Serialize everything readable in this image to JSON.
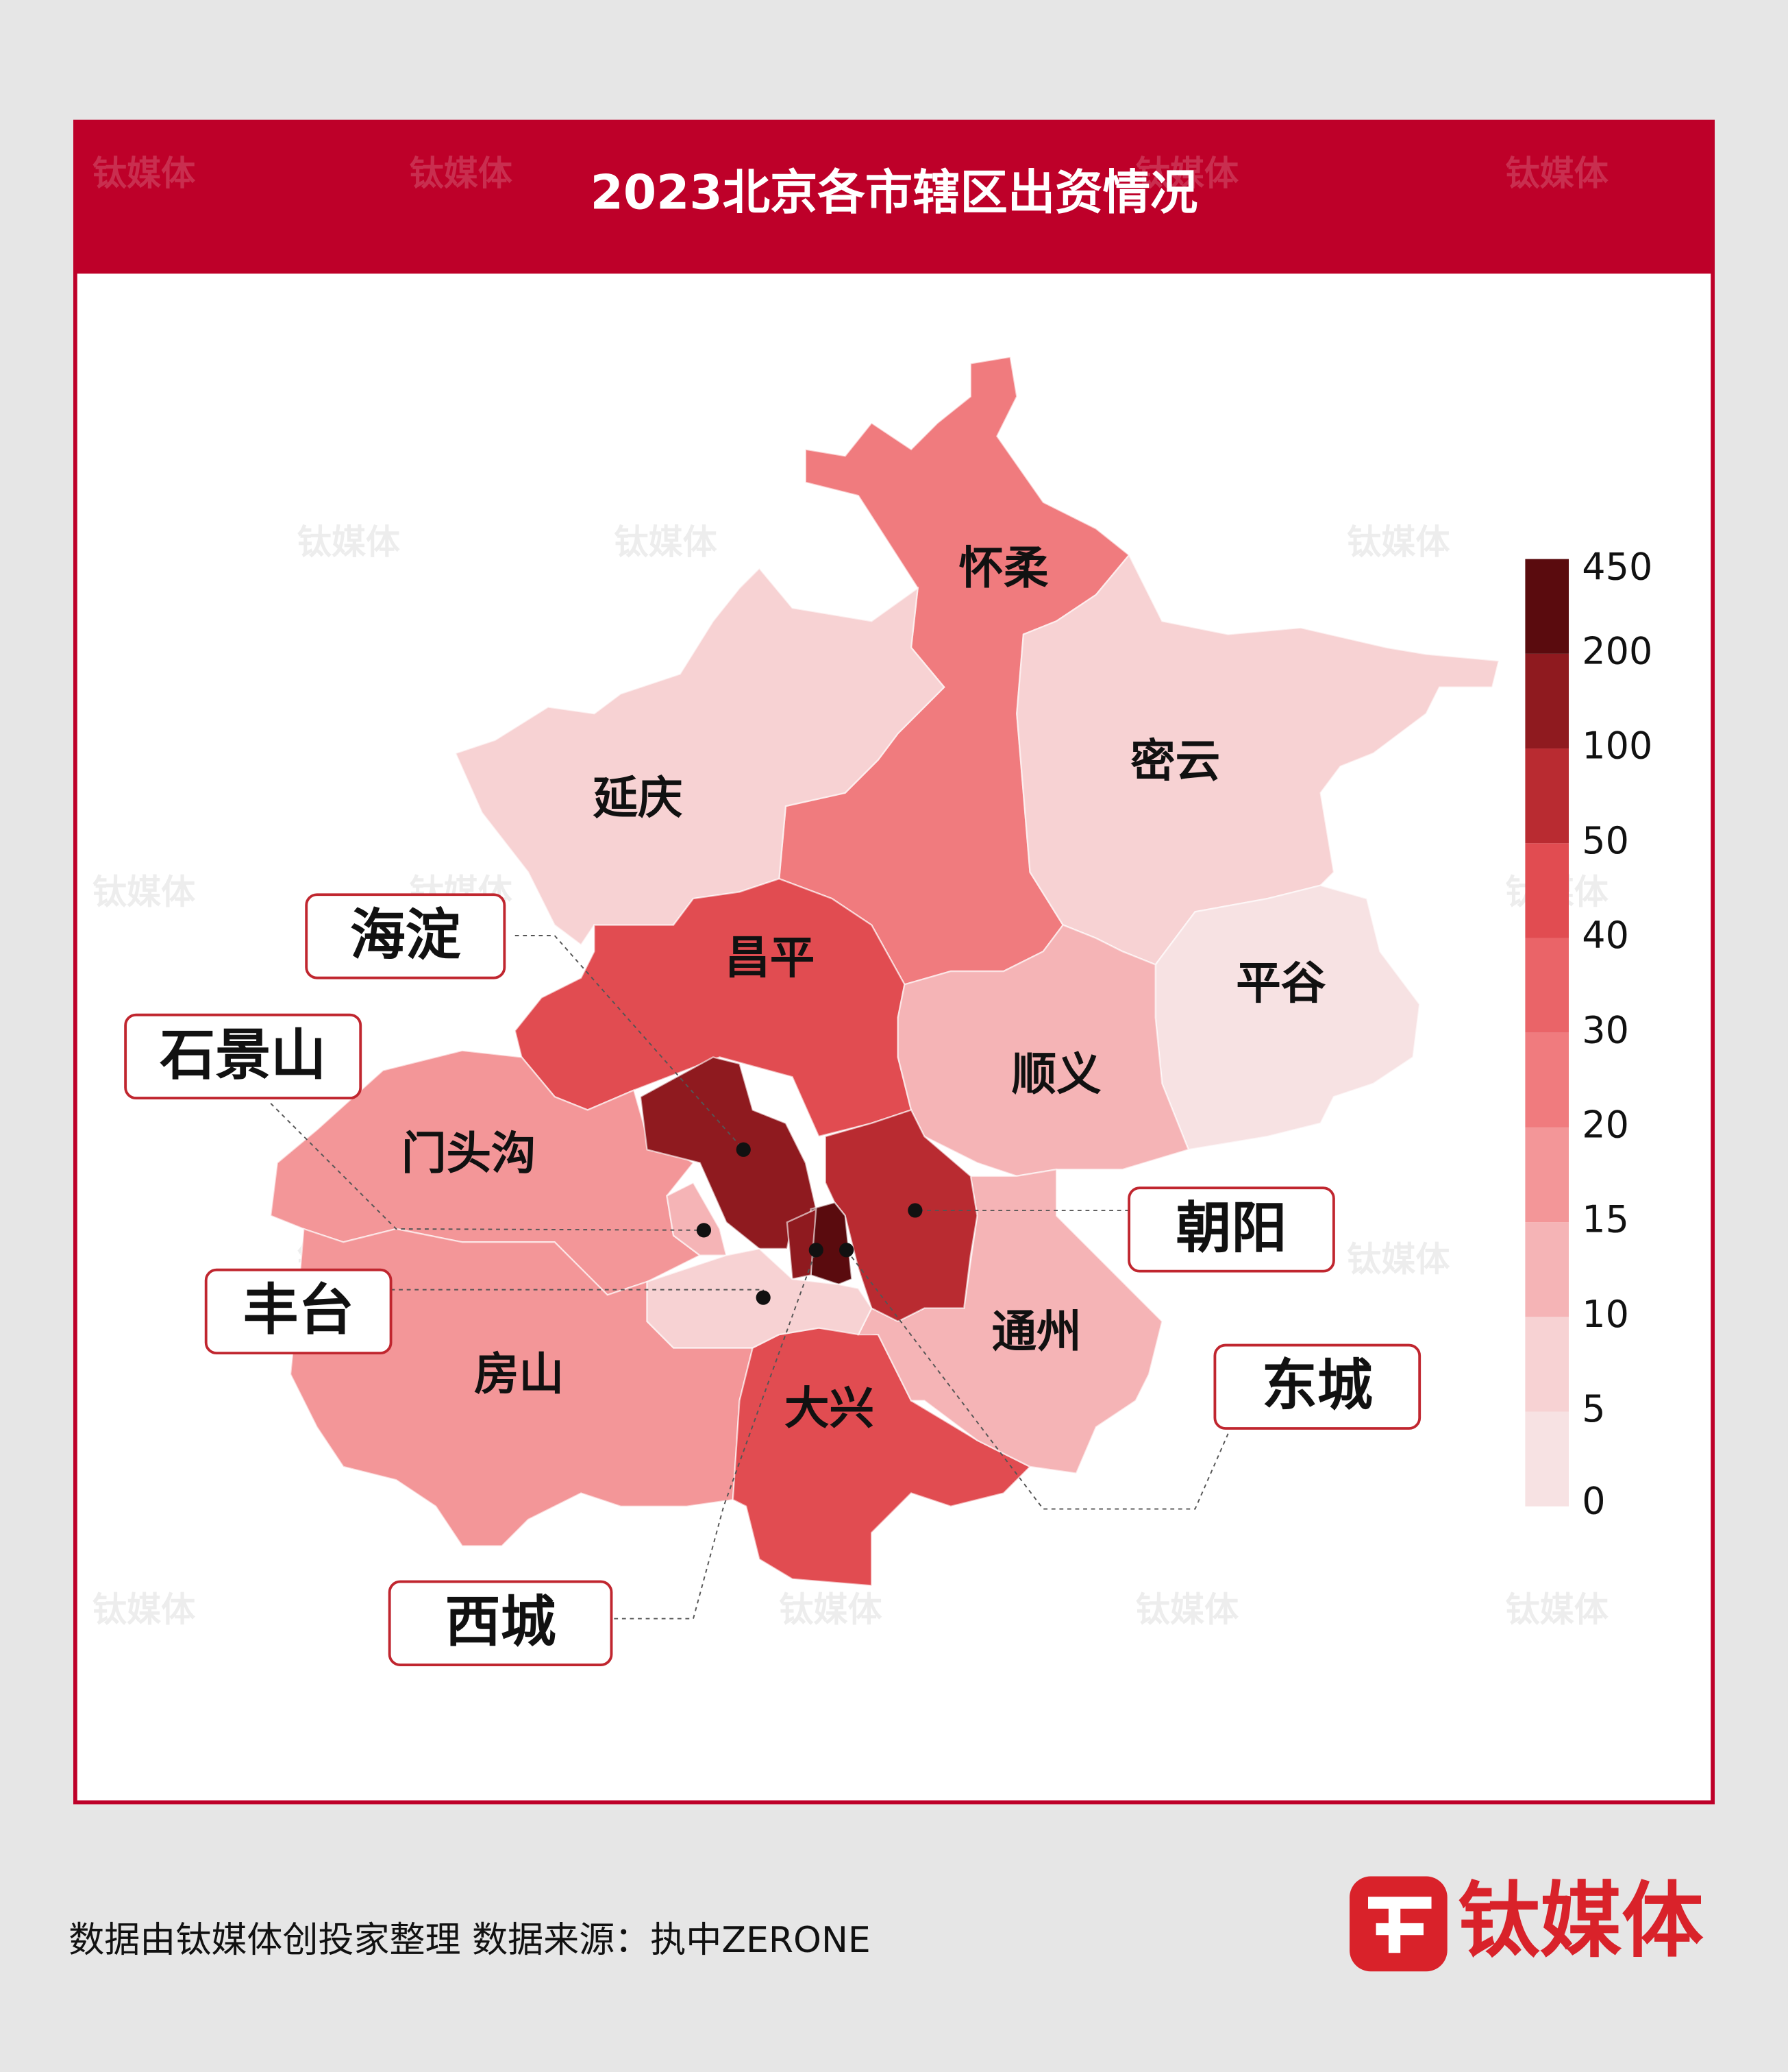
{
  "chart_data": {
    "type": "choropleth",
    "title": "2023北京各市辖区出资情况",
    "regions": [
      {
        "name": "怀柔",
        "value": 25
      },
      {
        "name": "密云",
        "value": 8
      },
      {
        "name": "延庆",
        "value": 7
      },
      {
        "name": "平谷",
        "value": 3
      },
      {
        "name": "昌平",
        "value": 45
      },
      {
        "name": "顺义",
        "value": 12
      },
      {
        "name": "门头沟",
        "value": 18
      },
      {
        "name": "房山",
        "value": 17
      },
      {
        "name": "大兴",
        "value": 45
      },
      {
        "name": "通州",
        "value": 12
      },
      {
        "name": "海淀",
        "value": 150
      },
      {
        "name": "朝阳",
        "value": 90
      },
      {
        "name": "东城",
        "value": 300
      },
      {
        "name": "西城",
        "value": 150
      },
      {
        "name": "石景山",
        "value": 12
      },
      {
        "name": "丰台",
        "value": 8
      }
    ],
    "color_scale": {
      "ticks": [
        0,
        5,
        10,
        15,
        20,
        30,
        40,
        50,
        100,
        200,
        450
      ],
      "colors": [
        "#f7e2e3",
        "#f7d2d3",
        "#f5b4b6",
        "#f39698",
        "#f07b7e",
        "#ea6468",
        "#e14c51",
        "#b92b31",
        "#8f1a1f",
        "#5a0b0e"
      ]
    }
  },
  "footer": "数据由钛媒体创投家整理  数据来源：执中ZERONE",
  "logo": "钛媒体",
  "watermark": "钛媒体"
}
